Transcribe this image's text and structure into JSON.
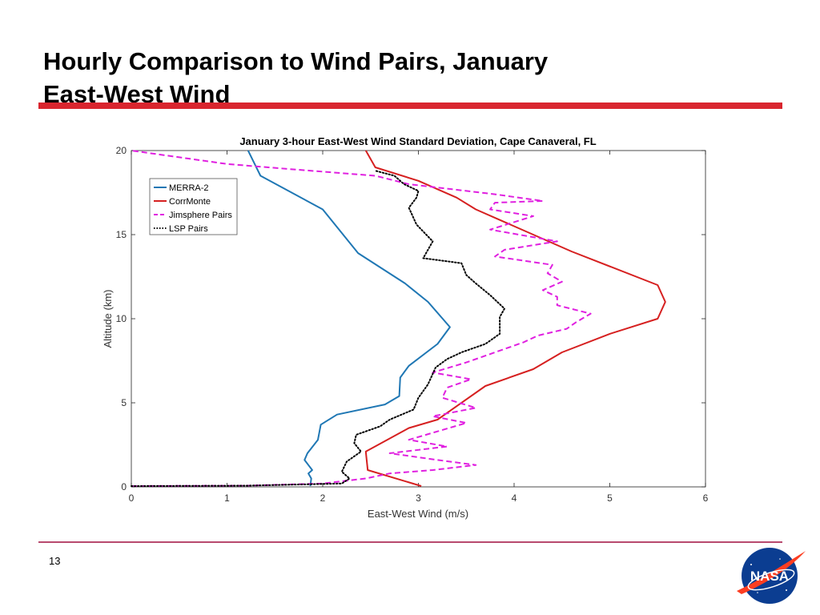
{
  "slide": {
    "title_line1": "Hourly Comparison to Wind Pairs, January",
    "title_line2": "East-West Wind",
    "page_number": "13",
    "logo_text": "NASA"
  },
  "colors": {
    "accent_rule": "#d9252e",
    "footer_rule": "#b84a6e",
    "merra2": "#1f77b4",
    "corrmonte": "#d62020",
    "jimsphere": "#e020e0",
    "lsp": "#000000"
  },
  "chart_data": {
    "type": "line",
    "title": "January 3-hour East-West Wind Standard Deviation, Cape Canaveral, FL",
    "xlabel": "East-West Wind (m/s)",
    "ylabel": "Altitude (km)",
    "xlim": [
      0,
      6
    ],
    "ylim": [
      0,
      20
    ],
    "xticks": [
      0,
      1,
      2,
      3,
      4,
      5,
      6
    ],
    "yticks": [
      0,
      5,
      10,
      15,
      20
    ],
    "grid": false,
    "legend_position": "top-left",
    "series": [
      {
        "name": "MERRA-2",
        "color": "#1f77b4",
        "style": "solid",
        "points": [
          [
            1.87,
            0.05
          ],
          [
            1.88,
            0.5
          ],
          [
            1.85,
            0.8
          ],
          [
            1.89,
            1.0
          ],
          [
            1.85,
            1.3
          ],
          [
            1.81,
            1.6
          ],
          [
            1.84,
            2.0
          ],
          [
            1.95,
            2.8
          ],
          [
            1.98,
            3.7
          ],
          [
            2.15,
            4.3
          ],
          [
            2.65,
            4.9
          ],
          [
            2.8,
            5.4
          ],
          [
            2.81,
            6.5
          ],
          [
            2.9,
            7.2
          ],
          [
            3.2,
            8.5
          ],
          [
            3.33,
            9.5
          ],
          [
            3.1,
            11.0
          ],
          [
            2.86,
            12.1
          ],
          [
            2.37,
            13.9
          ],
          [
            2.0,
            16.5
          ],
          [
            1.35,
            18.5
          ],
          [
            1.28,
            19.3
          ],
          [
            1.22,
            20.0
          ]
        ]
      },
      {
        "name": "CorrMonte",
        "color": "#d62020",
        "style": "solid",
        "points": [
          [
            3.03,
            0.05
          ],
          [
            2.47,
            1.0
          ],
          [
            2.45,
            2.1
          ],
          [
            2.9,
            3.5
          ],
          [
            3.2,
            4.0
          ],
          [
            3.7,
            6.0
          ],
          [
            4.2,
            7.0
          ],
          [
            4.5,
            8.0
          ],
          [
            5.0,
            9.1
          ],
          [
            5.5,
            10.0
          ],
          [
            5.58,
            11.0
          ],
          [
            5.5,
            12.0
          ],
          [
            4.6,
            14.0
          ],
          [
            4.0,
            15.5
          ],
          [
            3.6,
            16.5
          ],
          [
            3.4,
            17.2
          ],
          [
            3.0,
            18.2
          ],
          [
            2.55,
            19.0
          ],
          [
            2.45,
            20.0
          ]
        ]
      },
      {
        "name": "Jimsphere Pairs",
        "color": "#e020e0",
        "style": "dashed",
        "points": [
          [
            0.0,
            0.05
          ],
          [
            1.2,
            0.07
          ],
          [
            2.0,
            0.2
          ],
          [
            2.45,
            0.5
          ],
          [
            2.7,
            0.8
          ],
          [
            3.15,
            1.0
          ],
          [
            3.6,
            1.3
          ],
          [
            3.2,
            1.6
          ],
          [
            2.7,
            2.0
          ],
          [
            3.3,
            2.4
          ],
          [
            2.9,
            2.8
          ],
          [
            3.2,
            3.3
          ],
          [
            3.5,
            3.8
          ],
          [
            3.15,
            4.2
          ],
          [
            3.6,
            4.7
          ],
          [
            3.25,
            5.3
          ],
          [
            3.3,
            5.9
          ],
          [
            3.55,
            6.4
          ],
          [
            3.15,
            6.8
          ],
          [
            3.5,
            7.4
          ],
          [
            3.8,
            8.0
          ],
          [
            4.1,
            8.6
          ],
          [
            4.25,
            9.0
          ],
          [
            4.55,
            9.4
          ],
          [
            4.65,
            9.8
          ],
          [
            4.8,
            10.3
          ],
          [
            4.45,
            10.8
          ],
          [
            4.45,
            11.3
          ],
          [
            4.3,
            11.7
          ],
          [
            4.5,
            12.2
          ],
          [
            4.35,
            12.7
          ],
          [
            4.4,
            13.2
          ],
          [
            3.8,
            13.7
          ],
          [
            3.9,
            14.1
          ],
          [
            4.45,
            14.6
          ],
          [
            3.75,
            15.3
          ],
          [
            4.2,
            16.1
          ],
          [
            3.75,
            16.5
          ],
          [
            3.8,
            16.9
          ],
          [
            4.3,
            17.0
          ],
          [
            3.8,
            17.4
          ],
          [
            2.9,
            18.0
          ],
          [
            2.55,
            18.5
          ],
          [
            1.65,
            18.9
          ],
          [
            1.0,
            19.2
          ],
          [
            0.0,
            20.0
          ]
        ]
      },
      {
        "name": "LSP Pairs",
        "color": "#000000",
        "style": "dotted",
        "points": [
          [
            0.0,
            0.05
          ],
          [
            1.2,
            0.07
          ],
          [
            2.2,
            0.2
          ],
          [
            2.28,
            0.5
          ],
          [
            2.2,
            0.9
          ],
          [
            2.25,
            1.5
          ],
          [
            2.4,
            2.1
          ],
          [
            2.33,
            2.6
          ],
          [
            2.35,
            3.1
          ],
          [
            2.6,
            3.6
          ],
          [
            2.7,
            4.0
          ],
          [
            2.95,
            4.6
          ],
          [
            3.0,
            5.3
          ],
          [
            3.1,
            6.1
          ],
          [
            3.18,
            7.1
          ],
          [
            3.3,
            7.6
          ],
          [
            3.45,
            8.0
          ],
          [
            3.7,
            8.5
          ],
          [
            3.85,
            9.1
          ],
          [
            3.85,
            10.1
          ],
          [
            3.9,
            10.6
          ],
          [
            3.75,
            11.4
          ],
          [
            3.6,
            12.1
          ],
          [
            3.5,
            12.6
          ],
          [
            3.45,
            13.3
          ],
          [
            3.05,
            13.6
          ],
          [
            3.15,
            14.6
          ],
          [
            2.98,
            15.6
          ],
          [
            2.9,
            16.6
          ],
          [
            2.98,
            17.2
          ],
          [
            3.0,
            17.6
          ],
          [
            2.85,
            18.0
          ],
          [
            2.75,
            18.5
          ],
          [
            2.55,
            18.8
          ]
        ]
      }
    ]
  }
}
